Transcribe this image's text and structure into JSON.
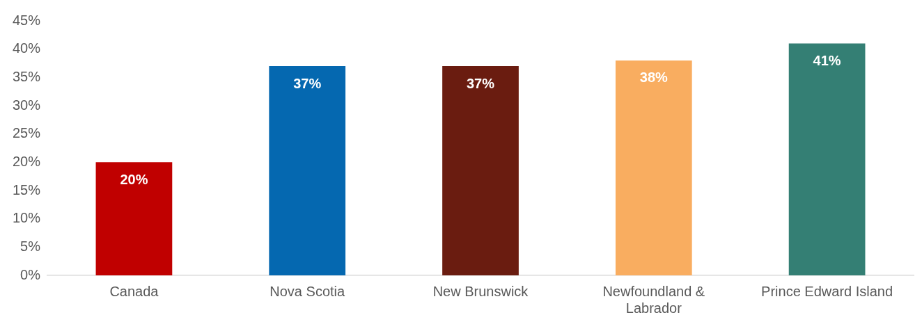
{
  "chart_data": {
    "type": "bar",
    "categories": [
      "Canada",
      "Nova Scotia",
      "New Brunswick",
      "Newfoundland & Labrador",
      "Prince Edward Island"
    ],
    "values": [
      20,
      37,
      37,
      38,
      41
    ],
    "colors": [
      "#c00000",
      "#0568b0",
      "#6a1c10",
      "#f9ad60",
      "#347f74"
    ],
    "value_labels": [
      "20%",
      "37%",
      "37%",
      "38%",
      "41%"
    ],
    "ylim": [
      0,
      45
    ],
    "yticks": [
      {
        "value": 0,
        "label": "0%"
      },
      {
        "value": 5,
        "label": "5%"
      },
      {
        "value": 10,
        "label": "10%"
      },
      {
        "value": 15,
        "label": "15%"
      },
      {
        "value": 20,
        "label": "20%"
      },
      {
        "value": 25,
        "label": "25%"
      },
      {
        "value": 30,
        "label": "30%"
      },
      {
        "value": 35,
        "label": "35%"
      },
      {
        "value": 40,
        "label": "40%"
      },
      {
        "value": 45,
        "label": "45%"
      }
    ],
    "grid": false,
    "legend": false
  }
}
